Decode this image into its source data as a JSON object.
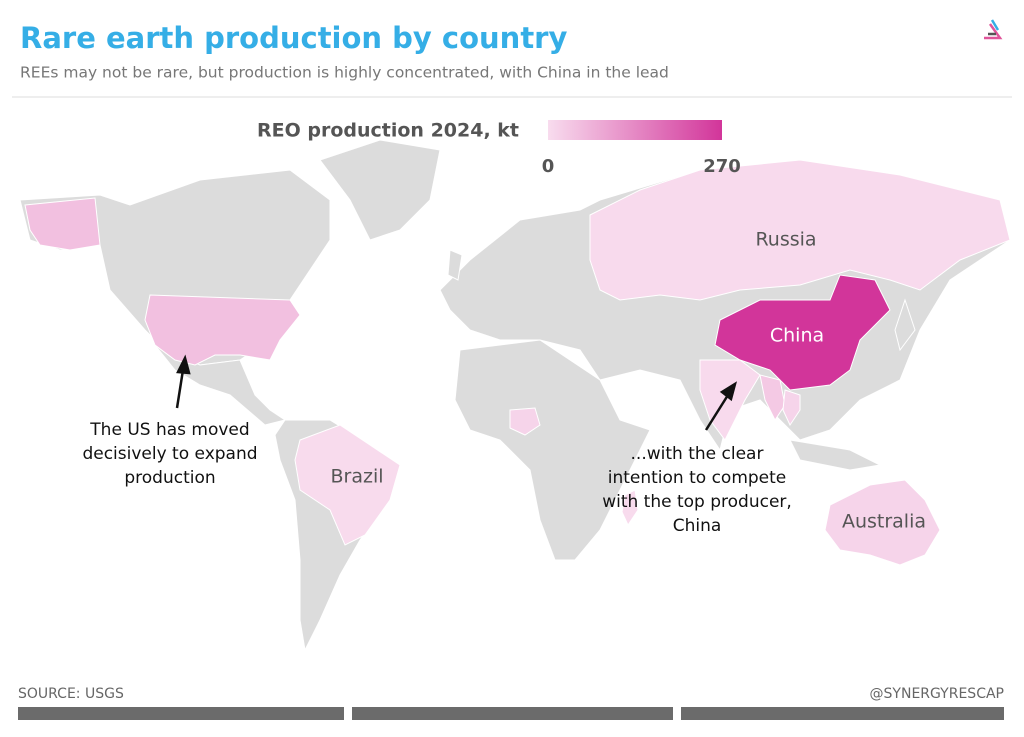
{
  "header": {
    "title": "Rare earth production by country",
    "subtitle": "REEs may not be rare, but production is highly concentrated, with China in the lead"
  },
  "legend": {
    "title": "REO production 2024, kt",
    "min": 0,
    "max": 270,
    "colors": [
      "#f8dcee",
      "#d2359a"
    ]
  },
  "no_data_color": "#dcdcdc",
  "regions": [
    {
      "label": "China",
      "value": 270
    },
    {
      "label": "Russia",
      "value": 2.5
    },
    {
      "label": "Brazil",
      "value": 2
    },
    {
      "label": "Australia",
      "value": 13
    },
    {
      "label": null,
      "value": 45
    },
    {
      "label": null,
      "value": 2.9
    },
    {
      "label": null,
      "value": 31
    },
    {
      "label": null,
      "value": 13
    },
    {
      "label": null,
      "value": 13
    },
    {
      "label": null,
      "value": 2
    }
  ],
  "annotations": [
    {
      "lines": [
        "The US has moved",
        "decisively to expand",
        "production"
      ]
    },
    {
      "lines": [
        "...with the clear",
        "intention to compete",
        "with the top producer,",
        "China"
      ]
    }
  ],
  "footer": {
    "source": "SOURCE: USGS",
    "credit": "@SYNERGYRESCAP"
  }
}
